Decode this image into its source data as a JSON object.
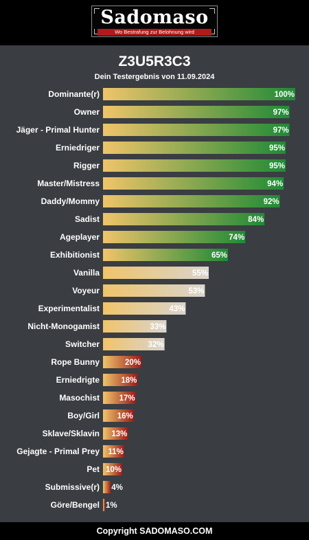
{
  "header": {
    "logo_text": "Sadomaso",
    "tagline": "Wo Bestrafung zur Belohnung wird"
  },
  "page": {
    "title": "Z3U5R3C3",
    "subtitle": "Dein Testergebnis von 11.09.2024"
  },
  "footer": {
    "copyright": "Copyright SADOMASO.COM"
  },
  "colors": {
    "background": "#3a3d42",
    "bar_start": "#f0c46a",
    "high_end": "#1f8a36",
    "mid_end": "#d9d4cc",
    "low_end": "#9a1b1b"
  },
  "chart_data": {
    "type": "bar",
    "orientation": "horizontal",
    "unit": "%",
    "xlim": [
      0,
      100
    ],
    "grid": false,
    "categories": [
      "Dominante(r)",
      "Owner",
      "Jäger - Primal Hunter",
      "Erniedriger",
      "Rigger",
      "Master/Mistress",
      "Daddy/Mommy",
      "Sadist",
      "Ageplayer",
      "Exhibitionist",
      "Vanilla",
      "Voyeur",
      "Experimentalist",
      "Nicht-Monogamist",
      "Switcher",
      "Rope Bunny",
      "Erniedrigte",
      "Masochist",
      "Boy/Girl",
      "Sklave/Sklavin",
      "Gejagte - Primal Prey",
      "Pet",
      "Submissive(r)",
      "Göre/Bengel"
    ],
    "values": [
      100,
      97,
      97,
      95,
      95,
      94,
      92,
      84,
      74,
      65,
      55,
      53,
      43,
      33,
      32,
      20,
      18,
      17,
      16,
      13,
      11,
      10,
      4,
      1
    ],
    "value_labels": [
      "100%",
      "97%",
      "97%",
      "95%",
      "95%",
      "94%",
      "92%",
      "84%",
      "74%",
      "65%",
      "55%",
      "53%",
      "43%",
      "33%",
      "32%",
      "20%",
      "18%",
      "17%",
      "16%",
      "13%",
      "11%",
      "10%",
      "4%",
      "1%"
    ]
  }
}
